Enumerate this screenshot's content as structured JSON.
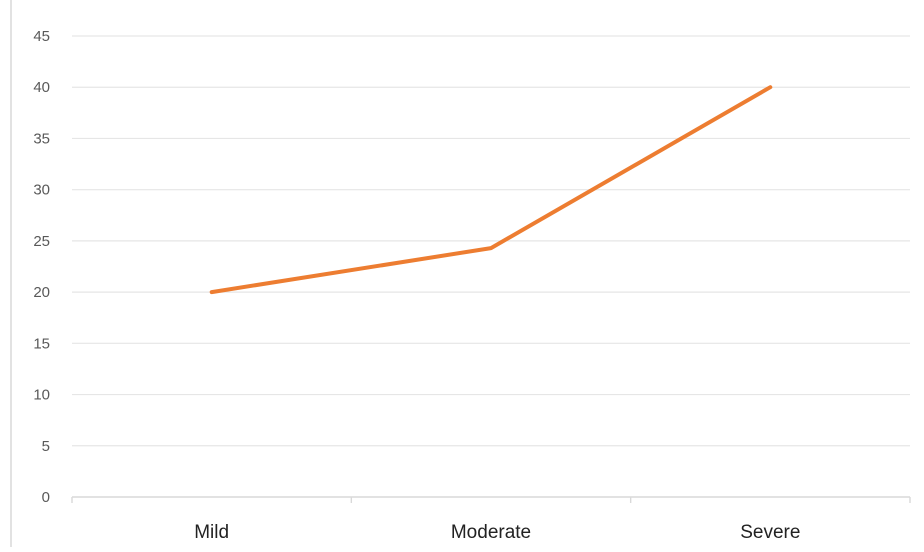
{
  "chart_data": {
    "type": "line",
    "title": "",
    "xlabel": "",
    "ylabel": "",
    "categories": [
      "Mild",
      "Moderate",
      "Severe"
    ],
    "series": [
      {
        "values": [
          20,
          24.3,
          40
        ]
      }
    ],
    "ylim": [
      0,
      45
    ],
    "yticks": [
      0,
      5,
      10,
      15,
      20,
      25,
      30,
      35,
      40,
      45
    ],
    "grid": true,
    "legend": "none",
    "colors": {
      "line": "#ED7D31",
      "grid": "#E6E6E6",
      "axis": "#D9D9D9",
      "tick_text": "#595959",
      "category_text": "#222222"
    }
  }
}
